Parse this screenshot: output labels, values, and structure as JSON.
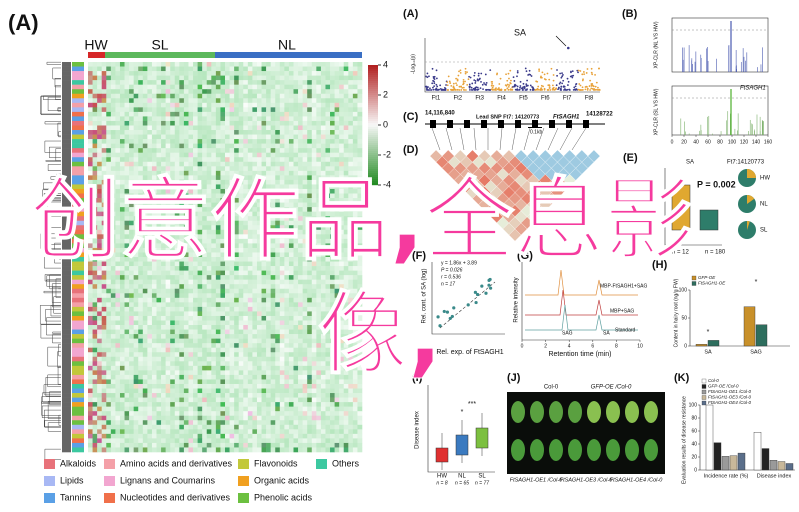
{
  "overlay": {
    "line1": "创意作品,全息影",
    "line2": "像,"
  },
  "panel_a": {
    "label": "(A)",
    "groups": [
      {
        "name": "HW",
        "color": "#d62728"
      },
      {
        "name": "SL",
        "color": "#5cb85c"
      },
      {
        "name": "NL",
        "color": "#3a6fc4"
      }
    ],
    "colorbar_ticks": [
      4,
      2,
      0,
      -2,
      -4
    ],
    "legend": [
      {
        "name": "Alkaloids",
        "color": "#e8727a"
      },
      {
        "name": "Amino acids and derivatives",
        "color": "#f4a0a8"
      },
      {
        "name": "Flavonoids",
        "color": "#c2c83a"
      },
      {
        "name": "Others",
        "color": "#3cc8a0"
      },
      {
        "name": "Lipids",
        "color": "#a8b8f4"
      },
      {
        "name": "Lignans and Coumarins",
        "color": "#f2a6d0"
      },
      {
        "name": "Organic acids",
        "color": "#f0a020"
      },
      {
        "name": "Tannins",
        "color": "#5aa0e6"
      },
      {
        "name": "Nucleotides and derivatives",
        "color": "#f0704a"
      },
      {
        "name": "Phenolic acids",
        "color": "#6cc040"
      }
    ]
  },
  "manhattan": {
    "label": "(A)",
    "title": "SA",
    "y_label": "-Log₁₀(p)",
    "chromosomes": [
      "Ft1",
      "Ft2",
      "Ft3",
      "Ft4",
      "Ft5",
      "Ft6",
      "Ft7",
      "Ft8"
    ]
  },
  "panel_b": {
    "label": "(B)",
    "top_label": "XP-CLR (NL VS HW)",
    "bottom_label": "XP-CLR (SL VS HW)",
    "gene": "FtSAGH1",
    "xticks": [
      0,
      20,
      40,
      60,
      80,
      100,
      120,
      140,
      160
    ]
  },
  "panel_c": {
    "label": "(C)",
    "start": "14,116,840",
    "end": "14128722",
    "snp": "Lead SNP Ft7: 14120773",
    "gene": "FtSAGH1",
    "scale": "0.1kb"
  },
  "panel_d": {
    "label": "(D)"
  },
  "panel_e": {
    "label": "(E)",
    "title": "SA",
    "snp": "Ft7:14120773",
    "p": "P = 0.002",
    "n1": "n = 12",
    "n2": "n = 180",
    "pies": [
      "HW",
      "NL",
      "SL"
    ]
  },
  "panel_f": {
    "label": "(F)",
    "stats": [
      "y = 1.86x + 3.89",
      "P = 0.026",
      "r = 0.536",
      "n = 17"
    ],
    "x_label": "Rel. exp. of FtSAGH1",
    "y_label": "Rel. cont. of SA (log)"
  },
  "panel_g": {
    "label": "(G)",
    "y_label": "Relative intensity",
    "x_label": "Retention time (min)",
    "traces": [
      "MBP-FtSAGH1+SAG",
      "MBP+SAG",
      "Standard"
    ],
    "peaks": [
      "SAG",
      "SA"
    ],
    "xticks": [
      0,
      2,
      4,
      6,
      8,
      10
    ]
  },
  "panel_h": {
    "label": "(H)",
    "legend": [
      {
        "name": "GFP-OE",
        "color": "#c8902a"
      },
      {
        "name": "FtSAGH1-OE",
        "color": "#2e6e5e"
      }
    ],
    "y_label": "Content in hairy root (ng/g FW)",
    "categories": [
      "SA",
      "SAG"
    ],
    "values": [
      [
        3,
        10
      ],
      [
        70,
        38
      ]
    ],
    "ylim": [
      0,
      100
    ],
    "yticks": [
      0,
      50,
      100
    ],
    "sig": [
      "*",
      "*"
    ]
  },
  "panel_i": {
    "label": "(I)",
    "y_label": "Disease index",
    "categories": [
      "HW",
      "NL",
      "SL"
    ],
    "n": [
      "n = 8",
      "n = 65",
      "n = 77"
    ],
    "sig": [
      "*",
      "***"
    ]
  },
  "panel_j": {
    "label": "(J)",
    "top": [
      "Col-0",
      "GFP-OE /Col-0"
    ],
    "bottom": [
      "FtSAGH1-OE1 /Col-0",
      "FtSAGH1-OE3 /Col-0",
      "FtSAGH1-OE4 /Col-0"
    ]
  },
  "panel_k": {
    "label": "(K)",
    "legend": [
      {
        "name": "Col-0",
        "color": "#ffffff"
      },
      {
        "name": "GFP-OE /Col-0",
        "color": "#222222"
      },
      {
        "name": "FtSAGH1-OE1 /Col-0",
        "color": "#9a9a9a"
      },
      {
        "name": "FtSAGH1-OE3 /Col-0",
        "color": "#c8b89a"
      },
      {
        "name": "FtSAGH1-OE4 /Col-0",
        "color": "#5a6e8a"
      }
    ],
    "y_label": "Evaluation results of disease resistance",
    "categories": [
      "Incidence rate (%)",
      "Disease index"
    ],
    "values": [
      [
        100,
        42,
        21,
        22,
        26
      ],
      [
        58,
        33,
        15,
        13,
        10
      ]
    ],
    "ylim": [
      0,
      100
    ],
    "yticks": [
      0,
      20,
      40,
      60,
      80,
      100
    ]
  }
}
